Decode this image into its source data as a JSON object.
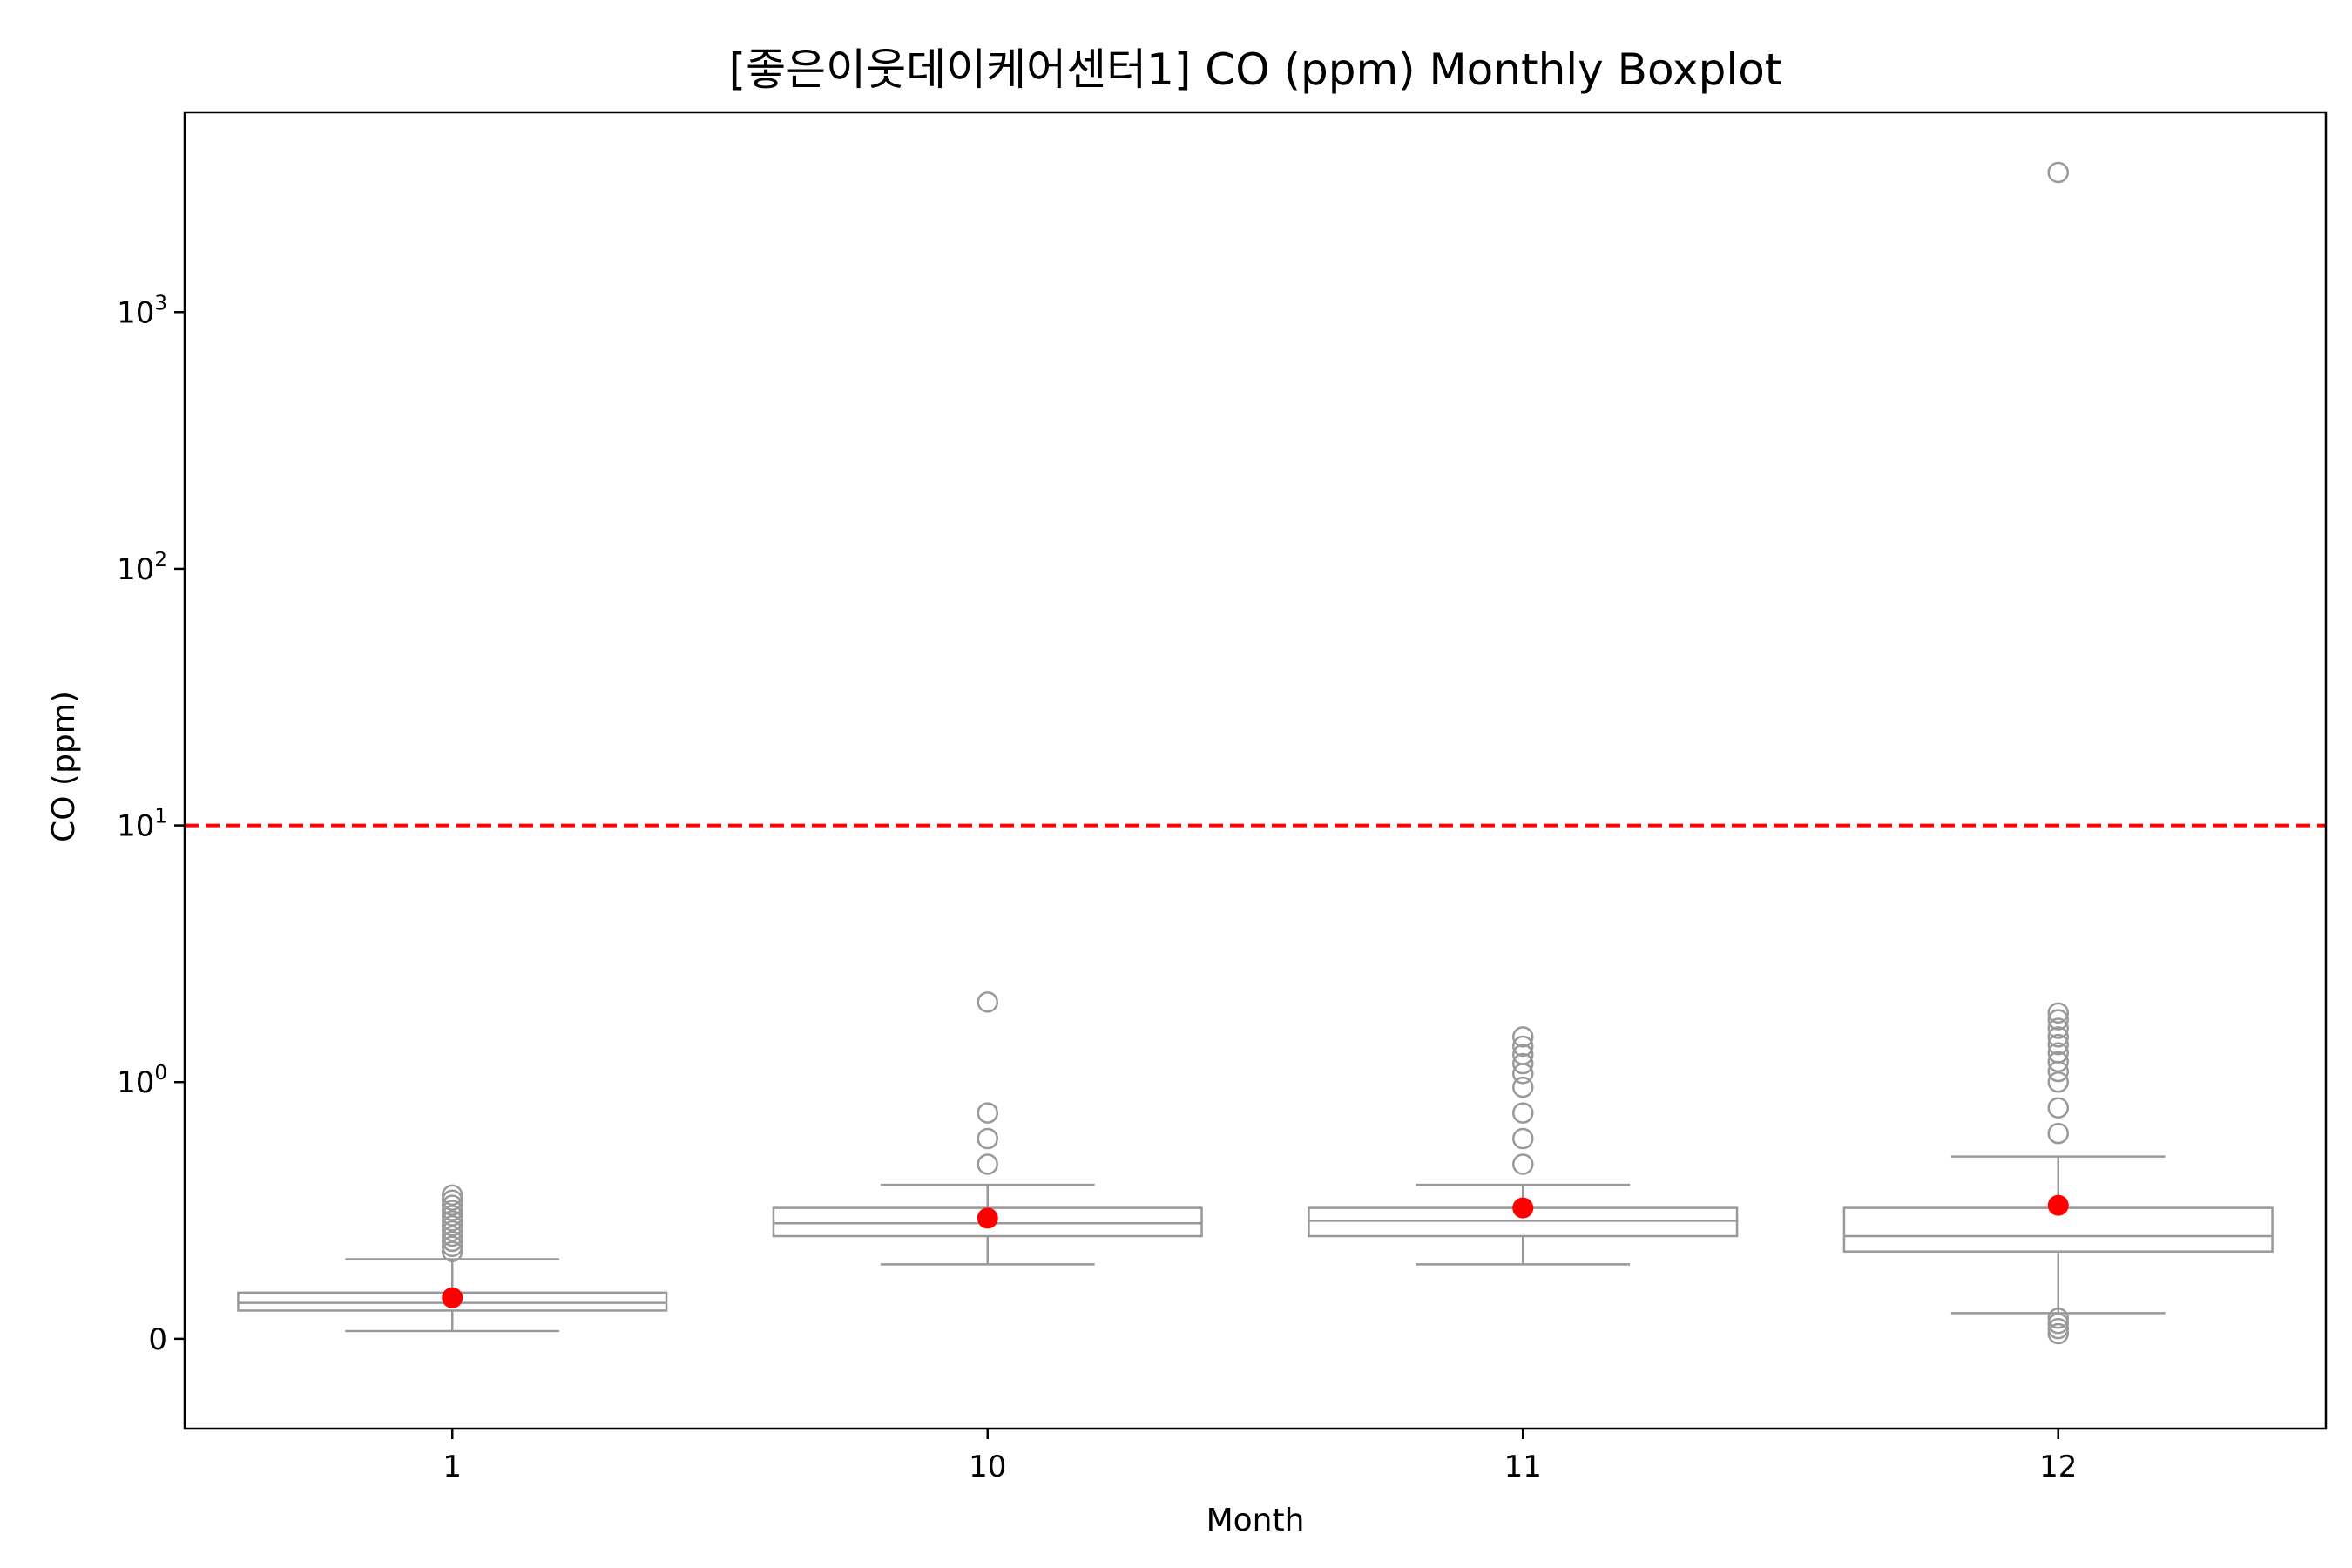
{
  "chart_data": {
    "type": "boxplot",
    "title": "[좋은이웃데이케어센터1] CO (ppm) Monthly Boxplot",
    "xlabel": "Month",
    "ylabel": "CO (ppm)",
    "y_scale": "symlog",
    "y_linthresh": 1,
    "ylim": [
      -0.35,
      6000
    ],
    "y_ticks": [
      {
        "value": 0,
        "base": "0",
        "exp": ""
      },
      {
        "value": 1,
        "base": "10",
        "exp": "0"
      },
      {
        "value": 10,
        "base": "10",
        "exp": "1"
      },
      {
        "value": 100,
        "base": "10",
        "exp": "2"
      },
      {
        "value": 1000,
        "base": "10",
        "exp": "3"
      }
    ],
    "threshold": {
      "value": 10,
      "color": "#ff0000",
      "style": "dashed"
    },
    "grid": false,
    "colors": {
      "box": "#999999",
      "mean": "#ff0000",
      "frame": "#000000"
    },
    "categories": [
      "1",
      "10",
      "11",
      "12"
    ],
    "boxes": [
      {
        "month": "1",
        "whisker_low": 0.03,
        "q1": 0.11,
        "median": 0.14,
        "q3": 0.18,
        "whisker_high": 0.31,
        "mean": 0.16,
        "outliers": [
          0.34,
          0.36,
          0.38,
          0.4,
          0.42,
          0.44,
          0.46,
          0.48,
          0.5,
          0.52,
          0.54,
          0.56
        ]
      },
      {
        "month": "10",
        "whisker_low": 0.29,
        "q1": 0.4,
        "median": 0.45,
        "q3": 0.51,
        "whisker_high": 0.6,
        "mean": 0.47,
        "outliers": [
          0.68,
          0.78,
          0.88,
          2.05
        ]
      },
      {
        "month": "11",
        "whisker_low": 0.29,
        "q1": 0.4,
        "median": 0.46,
        "q3": 0.51,
        "whisker_high": 0.6,
        "mean": 0.51,
        "outliers": [
          0.68,
          0.78,
          0.88,
          0.98,
          1.08,
          1.18,
          1.28,
          1.38,
          1.5
        ]
      },
      {
        "month": "12",
        "whisker_low": 0.1,
        "q1": 0.34,
        "median": 0.4,
        "q3": 0.51,
        "whisker_high": 0.71,
        "mean": 0.52,
        "outliers": [
          0.02,
          0.04,
          0.06,
          0.08,
          0.8,
          0.9,
          1.0,
          1.1,
          1.2,
          1.3,
          1.4,
          1.5,
          1.62,
          1.75,
          1.86,
          3500
        ]
      }
    ]
  }
}
